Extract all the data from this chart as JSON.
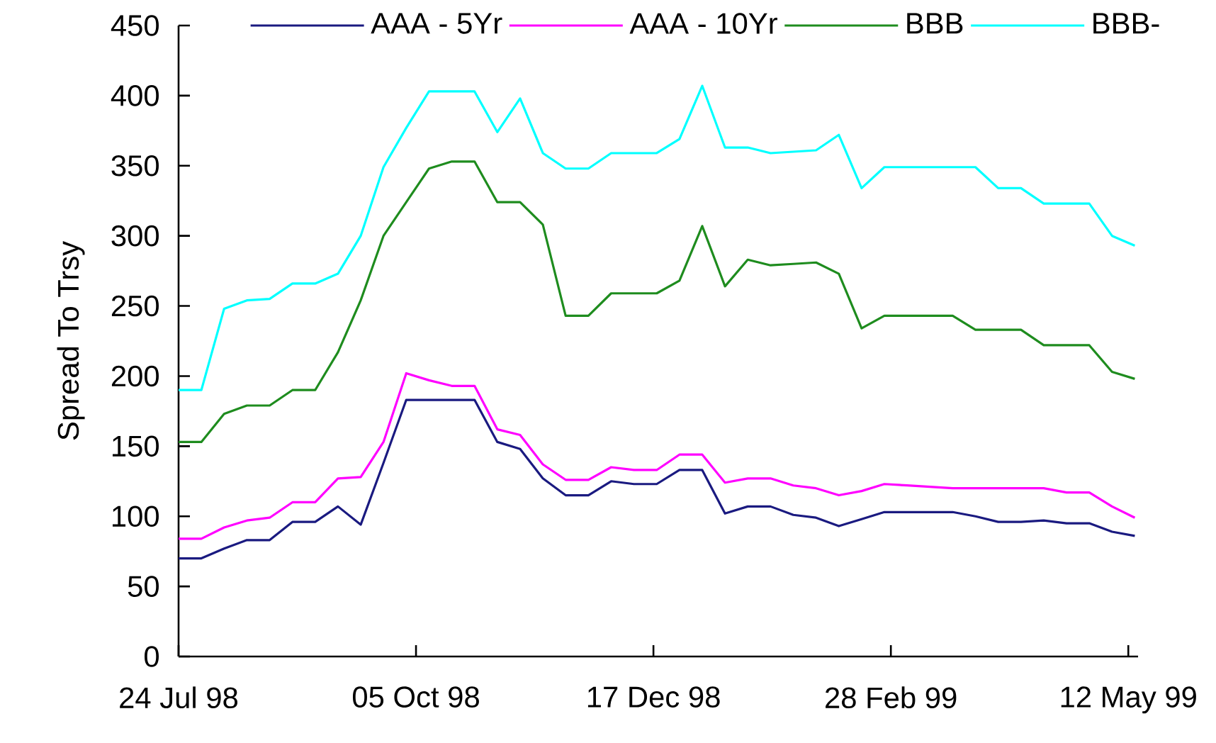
{
  "chart_data": {
    "type": "line",
    "ylabel": "Spread To Trsy",
    "x": [
      "1998-07-24",
      "1998-07-31",
      "1998-08-07",
      "1998-08-14",
      "1998-08-21",
      "1998-08-28",
      "1998-09-04",
      "1998-09-11",
      "1998-09-18",
      "1998-09-25",
      "1998-10-02",
      "1998-10-09",
      "1998-10-16",
      "1998-10-23",
      "1998-10-30",
      "1998-11-06",
      "1998-11-13",
      "1998-11-20",
      "1998-11-27",
      "1998-12-04",
      "1998-12-11",
      "1998-12-18",
      "1998-12-25",
      "1999-01-01",
      "1999-01-08",
      "1999-01-15",
      "1999-01-22",
      "1999-01-29",
      "1999-02-05",
      "1999-02-12",
      "1999-02-19",
      "1999-02-26",
      "1999-03-05",
      "1999-03-12",
      "1999-03-19",
      "1999-03-26",
      "1999-04-02",
      "1999-04-09",
      "1999-04-16",
      "1999-04-23",
      "1999-04-30",
      "1999-05-07",
      "1999-05-14"
    ],
    "series": [
      {
        "name": "AAA - 5Yr",
        "color": "#1a1a80",
        "values": [
          70,
          70,
          77,
          83,
          83,
          96,
          96,
          107,
          94,
          138,
          183,
          183,
          183,
          183,
          153,
          148,
          127,
          115,
          115,
          125,
          123,
          123,
          133,
          133,
          102,
          107,
          107,
          101,
          99,
          93,
          98,
          103,
          103,
          103,
          103,
          100,
          96,
          96,
          97,
          95,
          95,
          89,
          86
        ]
      },
      {
        "name": "AAA - 10Yr",
        "color": "#ff00ff",
        "values": [
          84,
          84,
          92,
          97,
          99,
          110,
          110,
          127,
          128,
          153,
          202,
          197,
          193,
          193,
          162,
          158,
          137,
          126,
          126,
          135,
          133,
          133,
          144,
          144,
          124,
          127,
          127,
          122,
          120,
          115,
          118,
          123,
          122,
          121,
          120,
          120,
          120,
          120,
          120,
          117,
          117,
          107,
          99
        ]
      },
      {
        "name": "BBB",
        "color": "#1e8c1e",
        "values": [
          153,
          153,
          173,
          179,
          179,
          190,
          190,
          217,
          254,
          300,
          324,
          348,
          353,
          353,
          324,
          324,
          308,
          243,
          243,
          259,
          259,
          259,
          268,
          307,
          264,
          283,
          279,
          280,
          281,
          273,
          234,
          243,
          243,
          243,
          243,
          233,
          233,
          233,
          222,
          222,
          222,
          203,
          198
        ]
      },
      {
        "name": "BBB-",
        "color": "#00ffff",
        "values": [
          190,
          190,
          248,
          254,
          255,
          266,
          266,
          273,
          300,
          349,
          377,
          403,
          403,
          403,
          374,
          398,
          359,
          348,
          348,
          359,
          359,
          359,
          369,
          407,
          363,
          363,
          359,
          360,
          361,
          372,
          334,
          349,
          349,
          349,
          349,
          349,
          334,
          334,
          323,
          323,
          323,
          300,
          293
        ]
      }
    ],
    "xlim": [
      "1998-07-24",
      "1999-05-15"
    ],
    "xticks": [
      {
        "value": "1998-07-24",
        "label": "24 Jul 98"
      },
      {
        "value": "1998-10-05",
        "label": "05 Oct 98"
      },
      {
        "value": "1998-12-17",
        "label": "17 Dec 98"
      },
      {
        "value": "1999-02-28",
        "label": "28 Feb 99"
      },
      {
        "value": "1999-05-12",
        "label": "12 May 99"
      }
    ],
    "ylim": [
      0,
      450
    ],
    "yticks": [
      0,
      50,
      100,
      150,
      200,
      250,
      300,
      350,
      400,
      450
    ],
    "grid": false,
    "legend": "top",
    "marker": "none",
    "line_style": "solid"
  }
}
